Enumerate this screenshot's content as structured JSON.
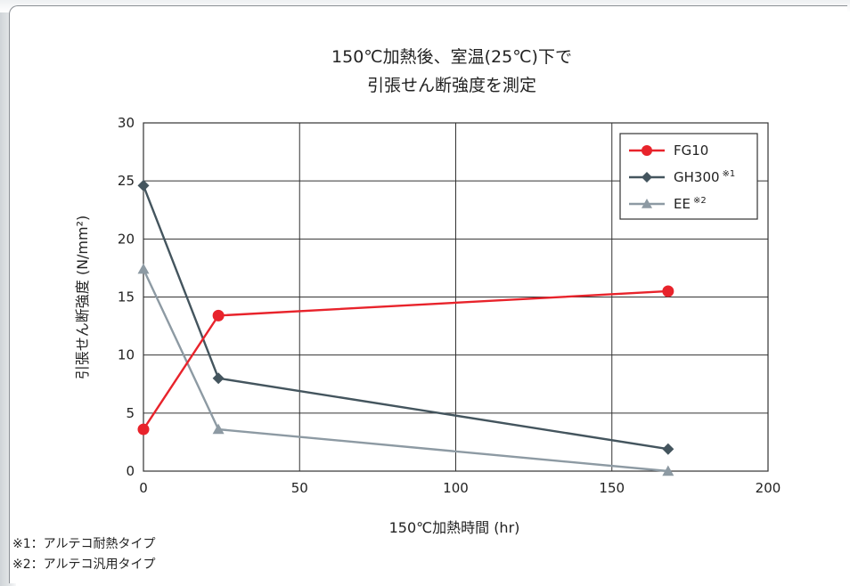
{
  "chart_data": {
    "type": "line",
    "title": [
      "150℃加熱後、室温(25℃)下で",
      "引張せん断強度を測定"
    ],
    "xlabel": "150℃加熱時間 (hr)",
    "ylabel": "引張せん断強度 (N/mm²)",
    "xlim": [
      0,
      200
    ],
    "ylim": [
      0,
      30
    ],
    "xticks": [
      "0",
      "50",
      "100",
      "150",
      "200"
    ],
    "yticks": [
      "0",
      "5",
      "10",
      "15",
      "20",
      "25",
      "30"
    ],
    "grid": true,
    "legend_position": "top-right",
    "series": [
      {
        "name": "FG10",
        "sup": "",
        "marker": "circle",
        "color": "#e8232b",
        "x": [
          0,
          24,
          168
        ],
        "y": [
          3.6,
          13.4,
          15.5
        ]
      },
      {
        "name": "GH300",
        "sup": "※1",
        "marker": "diamond",
        "color": "#44555e",
        "x": [
          0,
          24,
          168
        ],
        "y": [
          24.6,
          8.0,
          1.9
        ]
      },
      {
        "name": "EE",
        "sup": "※2",
        "marker": "triangle",
        "color": "#8d9aa3",
        "x": [
          0,
          24,
          168
        ],
        "y": [
          17.4,
          3.6,
          0.0
        ]
      }
    ]
  },
  "notes": [
    "※1：アルテコ耐熱タイプ",
    "※2：アルテコ汎用タイプ"
  ]
}
